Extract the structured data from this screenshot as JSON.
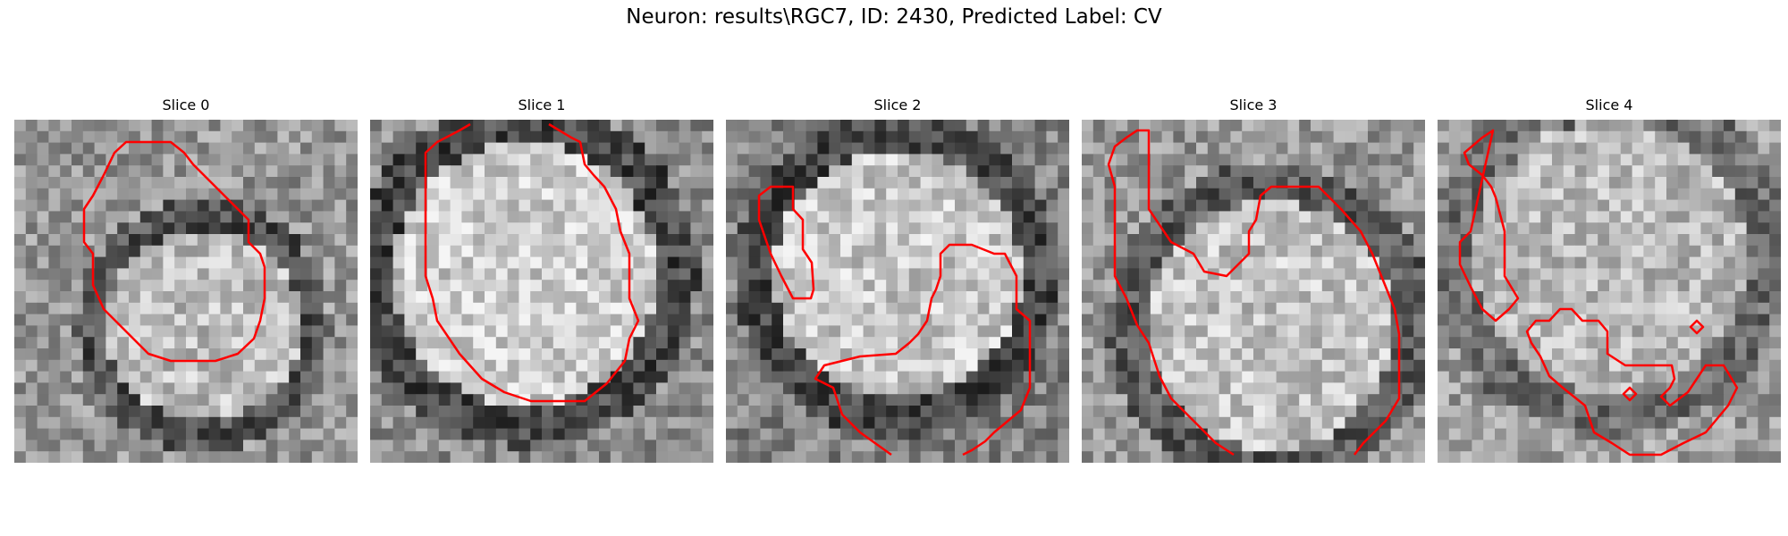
{
  "figure": {
    "title": "Neuron: results\\RGC7, ID: 2430, Predicted Label: CV"
  },
  "colors": {
    "contour": "#ff0000",
    "background": "#ffffff"
  },
  "image_grid": {
    "cells_per_side": 30,
    "colormap": "grayscale"
  },
  "panels": [
    {
      "title": "Slice 0"
    },
    {
      "title": "Slice 1"
    },
    {
      "title": "Slice 2"
    },
    {
      "title": "Slice 3"
    },
    {
      "title": "Slice 4"
    }
  ]
}
